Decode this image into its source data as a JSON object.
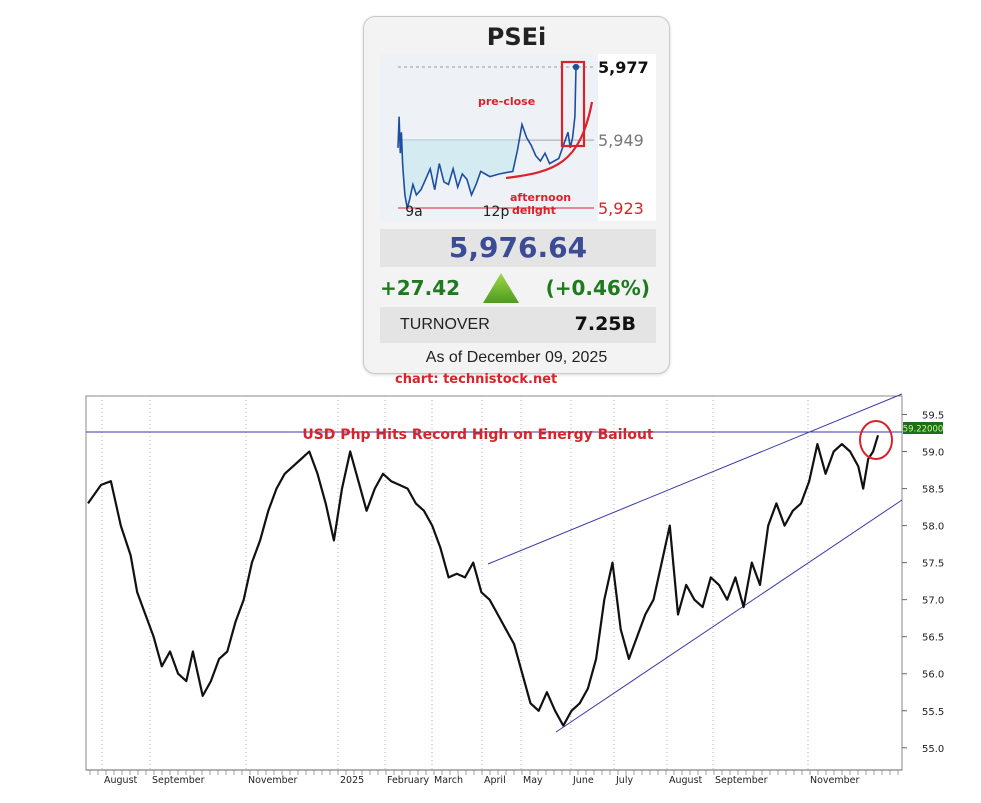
{
  "card": {
    "title": "PSEi",
    "price": "5,976.64",
    "change_abs": "+27.42",
    "change_pct": "(+0.46%)",
    "turnover_label": "TURNOVER",
    "turnover_value": "7.25B",
    "as_of": "As of December 09, 2025",
    "trend_icon": "up-triangle-icon",
    "colors": {
      "price": "#3b4b96",
      "up": "#1f7a1f",
      "arrow": "#6fbf2a",
      "annotation": "#d9222a"
    }
  },
  "credit": "chart: technistock.net",
  "chart_data": [
    {
      "type": "line",
      "name": "PSEi intraday",
      "x_tick_labels": [
        "9a",
        "12p"
      ],
      "ylim": [
        5918,
        5982
      ],
      "reference_lines": [
        {
          "label": "5,977",
          "value": 5977,
          "style": "dashed"
        },
        {
          "label": "5,949",
          "value": 5949,
          "style": "solid"
        },
        {
          "label": "5,923",
          "value": 5923,
          "style": "solid"
        }
      ],
      "annotations": [
        "pre-close",
        "afternoon delight"
      ],
      "points": [
        [
          0,
          5946
        ],
        [
          1,
          5958
        ],
        [
          2,
          5944
        ],
        [
          3,
          5952
        ],
        [
          4,
          5940
        ],
        [
          5,
          5934
        ],
        [
          6,
          5928
        ],
        [
          8,
          5923
        ],
        [
          10,
          5926
        ],
        [
          13,
          5932
        ],
        [
          16,
          5928
        ],
        [
          20,
          5930
        ],
        [
          24,
          5934
        ],
        [
          28,
          5938
        ],
        [
          32,
          5930
        ],
        [
          36,
          5940
        ],
        [
          40,
          5933
        ],
        [
          44,
          5932
        ],
        [
          48,
          5938
        ],
        [
          52,
          5931
        ],
        [
          56,
          5936
        ],
        [
          60,
          5934
        ],
        [
          64,
          5928
        ],
        [
          68,
          5932
        ],
        [
          72,
          5937
        ],
        [
          76,
          5936
        ],
        [
          80,
          5935
        ],
        [
          88,
          5936
        ],
        [
          100,
          5937
        ],
        [
          104,
          5945
        ],
        [
          108,
          5955
        ],
        [
          112,
          5950
        ],
        [
          116,
          5947
        ],
        [
          120,
          5943
        ],
        [
          124,
          5941
        ],
        [
          128,
          5944
        ],
        [
          132,
          5940
        ],
        [
          136,
          5941
        ],
        [
          140,
          5942
        ],
        [
          144,
          5947
        ],
        [
          148,
          5952
        ],
        [
          150,
          5946
        ],
        [
          152,
          5950
        ],
        [
          154,
          5958
        ],
        [
          155,
          5977
        ]
      ]
    },
    {
      "type": "line",
      "title": "USD Php Hits Record High on Energy Bailout",
      "x_tick_labels": [
        "August",
        "September",
        "November",
        "2025",
        "February",
        "March",
        "April",
        "May",
        "June",
        "July",
        "August",
        "September",
        "November"
      ],
      "y_tick_labels": [
        "59.5",
        "59.0",
        "58.5",
        "58.0",
        "57.5",
        "57.0",
        "56.5",
        "56.0",
        "55.5",
        "55.0"
      ],
      "ylim": [
        54.7,
        59.75
      ],
      "last_value_label": "59.22000",
      "grid": true,
      "points": [
        [
          0,
          58.3
        ],
        [
          8,
          58.55
        ],
        [
          14,
          58.6
        ],
        [
          20,
          58.0
        ],
        [
          26,
          57.6
        ],
        [
          30,
          57.1
        ],
        [
          35,
          56.8
        ],
        [
          40,
          56.5
        ],
        [
          45,
          56.1
        ],
        [
          50,
          56.3
        ],
        [
          55,
          56.0
        ],
        [
          60,
          55.9
        ],
        [
          64,
          56.3
        ],
        [
          70,
          55.7
        ],
        [
          75,
          55.9
        ],
        [
          80,
          56.2
        ],
        [
          85,
          56.3
        ],
        [
          90,
          56.7
        ],
        [
          95,
          57.0
        ],
        [
          100,
          57.5
        ],
        [
          105,
          57.8
        ],
        [
          110,
          58.2
        ],
        [
          115,
          58.5
        ],
        [
          120,
          58.7
        ],
        [
          125,
          58.8
        ],
        [
          130,
          58.9
        ],
        [
          135,
          59.0
        ],
        [
          140,
          58.7
        ],
        [
          145,
          58.3
        ],
        [
          150,
          57.8
        ],
        [
          155,
          58.5
        ],
        [
          160,
          59.0
        ],
        [
          165,
          58.6
        ],
        [
          170,
          58.2
        ],
        [
          175,
          58.5
        ],
        [
          180,
          58.7
        ],
        [
          185,
          58.6
        ],
        [
          190,
          58.55
        ],
        [
          195,
          58.5
        ],
        [
          200,
          58.3
        ],
        [
          205,
          58.2
        ],
        [
          210,
          58.0
        ],
        [
          215,
          57.7
        ],
        [
          220,
          57.3
        ],
        [
          225,
          57.35
        ],
        [
          230,
          57.3
        ],
        [
          235,
          57.5
        ],
        [
          240,
          57.1
        ],
        [
          245,
          57.0
        ],
        [
          250,
          56.8
        ],
        [
          255,
          56.6
        ],
        [
          260,
          56.4
        ],
        [
          265,
          56.0
        ],
        [
          270,
          55.6
        ],
        [
          275,
          55.5
        ],
        [
          280,
          55.75
        ],
        [
          285,
          55.5
        ],
        [
          290,
          55.3
        ],
        [
          295,
          55.5
        ],
        [
          300,
          55.6
        ],
        [
          305,
          55.8
        ],
        [
          310,
          56.2
        ],
        [
          315,
          57.0
        ],
        [
          320,
          57.5
        ],
        [
          325,
          56.6
        ],
        [
          330,
          56.2
        ],
        [
          335,
          56.5
        ],
        [
          340,
          56.8
        ],
        [
          345,
          57.0
        ],
        [
          350,
          57.5
        ],
        [
          355,
          58.0
        ],
        [
          360,
          56.8
        ],
        [
          365,
          57.2
        ],
        [
          370,
          57.0
        ],
        [
          375,
          56.9
        ],
        [
          380,
          57.3
        ],
        [
          385,
          57.2
        ],
        [
          390,
          57.0
        ],
        [
          395,
          57.3
        ],
        [
          400,
          56.9
        ],
        [
          405,
          57.5
        ],
        [
          410,
          57.2
        ],
        [
          415,
          58.0
        ],
        [
          420,
          58.3
        ],
        [
          425,
          58.0
        ],
        [
          430,
          58.2
        ],
        [
          435,
          58.3
        ],
        [
          440,
          58.6
        ],
        [
          445,
          59.1
        ],
        [
          450,
          58.7
        ],
        [
          455,
          59.0
        ],
        [
          460,
          59.1
        ],
        [
          465,
          59.0
        ],
        [
          470,
          58.8
        ],
        [
          473,
          58.5
        ],
        [
          476,
          58.9
        ],
        [
          479,
          59.0
        ],
        [
          482,
          59.22
        ]
      ]
    }
  ]
}
